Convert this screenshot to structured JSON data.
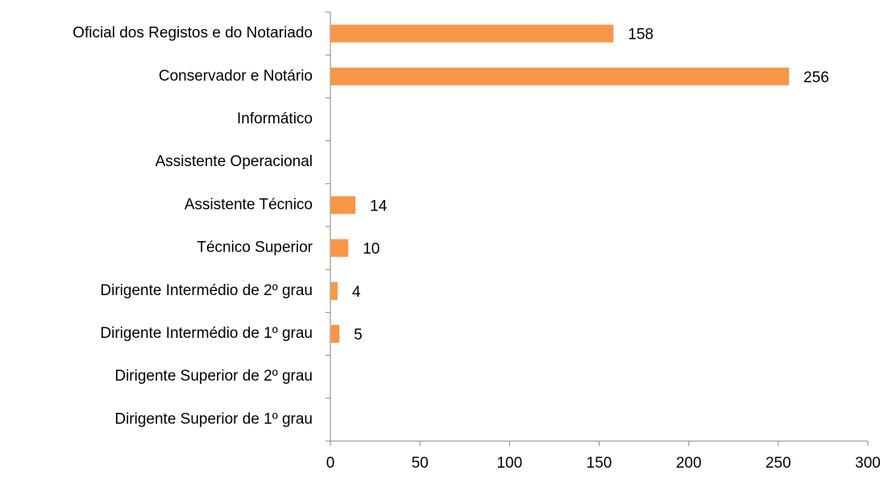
{
  "chart_data": {
    "type": "bar",
    "orientation": "horizontal",
    "categories": [
      "Oficial dos Registos e do Notariado",
      "Conservador e Notário",
      "Informático",
      "Assistente Operacional",
      "Assistente Técnico",
      "Técnico Superior",
      "Dirigente Intermédio de 2º grau",
      "Dirigente Intermédio de 1º grau",
      "Dirigente Superior de 2º grau",
      "Dirigente Superior de 1º grau"
    ],
    "values": [
      158,
      256,
      null,
      null,
      14,
      10,
      4,
      5,
      null,
      null
    ],
    "color": "#f79646",
    "xlim": [
      0,
      300
    ],
    "xticks": [
      0,
      50,
      100,
      150,
      200,
      250,
      300
    ],
    "grid": false
  }
}
